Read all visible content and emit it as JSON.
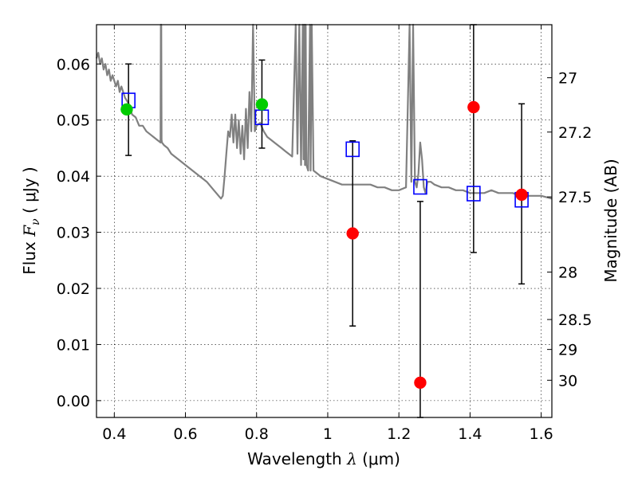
{
  "chart_data": {
    "type": "scatter",
    "xlabel": "Wavelength",
    "xlabel_symbol": "λ",
    "xlabel_unit": "(μm)",
    "ylabel": "Flux",
    "ylabel_symbol": "F",
    "ylabel_subscript": "ν",
    "ylabel_unit": "( μJy )",
    "y2label": "Magnitude (AB)",
    "xlim": [
      0.35,
      1.63
    ],
    "ylim": [
      -0.003,
      0.067
    ],
    "grid": true,
    "x_ticks": [
      0.4,
      0.6,
      0.8,
      1.0,
      1.2,
      1.4,
      1.6
    ],
    "x_tick_labels": [
      "0.4",
      "0.6",
      "0.8",
      "1",
      "1.2",
      "1.4",
      "1.6"
    ],
    "y_ticks": [
      0.0,
      0.01,
      0.02,
      0.03,
      0.04,
      0.05,
      0.06
    ],
    "y_tick_labels": [
      "0.00",
      "0.01",
      "0.02",
      "0.03",
      "0.04",
      "0.05",
      "0.06"
    ],
    "y2_ticks": [
      27,
      27.2,
      27.5,
      28,
      28.5,
      29,
      30
    ],
    "y2_tick_labels": [
      "27",
      "27.2",
      "27.5",
      "28",
      "28.5",
      "29",
      "30"
    ],
    "series": [
      {
        "kind": "line",
        "color": "#808080",
        "x": [
          0.35,
          0.355,
          0.36,
          0.365,
          0.37,
          0.375,
          0.38,
          0.385,
          0.39,
          0.395,
          0.4,
          0.405,
          0.41,
          0.415,
          0.42,
          0.43,
          0.44,
          0.45,
          0.46,
          0.47,
          0.48,
          0.49,
          0.5,
          0.51,
          0.52,
          0.53,
          0.531,
          0.532,
          0.533,
          0.534,
          0.54,
          0.55,
          0.56,
          0.57,
          0.58,
          0.6,
          0.62,
          0.64,
          0.66,
          0.68,
          0.7,
          0.705,
          0.71,
          0.715,
          0.72,
          0.725,
          0.73,
          0.735,
          0.74,
          0.745,
          0.75,
          0.755,
          0.76,
          0.765,
          0.77,
          0.775,
          0.78,
          0.785,
          0.79,
          0.795,
          0.8,
          0.81,
          0.82,
          0.83,
          0.84,
          0.85,
          0.86,
          0.87,
          0.88,
          0.89,
          0.9,
          0.91,
          0.915,
          0.92,
          0.925,
          0.93,
          0.932,
          0.934,
          0.936,
          0.938,
          0.94,
          0.945,
          0.95,
          0.952,
          0.955,
          0.96,
          0.97,
          0.98,
          1.0,
          1.02,
          1.04,
          1.06,
          1.08,
          1.1,
          1.12,
          1.14,
          1.16,
          1.18,
          1.2,
          1.22,
          1.23,
          1.235,
          1.24,
          1.245,
          1.25,
          1.255,
          1.26,
          1.265,
          1.27,
          1.275,
          1.28,
          1.29,
          1.3,
          1.32,
          1.34,
          1.36,
          1.38,
          1.4,
          1.42,
          1.44,
          1.46,
          1.48,
          1.5,
          1.52,
          1.54,
          1.56,
          1.58,
          1.6,
          1.63
        ],
        "values": [
          0.061,
          0.062,
          0.06,
          0.061,
          0.059,
          0.06,
          0.058,
          0.059,
          0.057,
          0.058,
          0.057,
          0.056,
          0.057,
          0.055,
          0.056,
          0.054,
          0.053,
          0.051,
          0.0505,
          0.049,
          0.049,
          0.048,
          0.0475,
          0.047,
          0.0465,
          0.046,
          0.067,
          0.067,
          0.0465,
          0.046,
          0.0455,
          0.045,
          0.044,
          0.0435,
          0.043,
          0.042,
          0.041,
          0.04,
          0.039,
          0.0375,
          0.036,
          0.0365,
          0.04,
          0.044,
          0.048,
          0.047,
          0.051,
          0.046,
          0.051,
          0.045,
          0.05,
          0.044,
          0.049,
          0.043,
          0.052,
          0.045,
          0.055,
          0.048,
          0.067,
          0.048,
          0.049,
          0.0495,
          0.048,
          0.047,
          0.0465,
          0.046,
          0.0455,
          0.045,
          0.0445,
          0.044,
          0.0435,
          0.067,
          0.044,
          0.067,
          0.042,
          0.067,
          0.043,
          0.067,
          0.042,
          0.067,
          0.042,
          0.041,
          0.067,
          0.041,
          0.067,
          0.041,
          0.0405,
          0.04,
          0.0395,
          0.039,
          0.0385,
          0.0385,
          0.0385,
          0.0385,
          0.0385,
          0.038,
          0.038,
          0.0375,
          0.0375,
          0.038,
          0.067,
          0.039,
          0.067,
          0.039,
          0.038,
          0.0405,
          0.046,
          0.043,
          0.038,
          0.037,
          0.039,
          0.039,
          0.0385,
          0.038,
          0.038,
          0.0375,
          0.0375,
          0.037,
          0.037,
          0.037,
          0.0375,
          0.037,
          0.037,
          0.037,
          0.0365,
          0.0365,
          0.0365,
          0.0365,
          0.036
        ]
      },
      {
        "kind": "errorbar",
        "color": "#000000",
        "x": [
          0.44,
          0.815,
          1.07,
          1.26,
          1.41,
          1.545
        ],
        "low": [
          0.0437,
          0.045,
          0.0133,
          -0.003,
          0.0264,
          0.0208
        ],
        "high": [
          0.06,
          0.0607,
          0.0463,
          0.0355,
          0.067,
          0.0529
        ]
      },
      {
        "kind": "markers-square-open",
        "color": "#0000ff",
        "x": [
          0.44,
          0.815,
          1.07,
          1.26,
          1.41,
          1.545
        ],
        "values": [
          0.0535,
          0.0505,
          0.0448,
          0.0381,
          0.0369,
          0.0358
        ]
      },
      {
        "kind": "markers-circle",
        "color": "#00cc00",
        "x": [
          0.435,
          0.815
        ],
        "values": [
          0.0519,
          0.0528
        ]
      },
      {
        "kind": "markers-circle",
        "color": "#ff0000",
        "x": [
          1.07,
          1.26,
          1.41,
          1.545
        ],
        "values": [
          0.0298,
          0.0032,
          0.0523,
          0.0367
        ]
      }
    ]
  }
}
